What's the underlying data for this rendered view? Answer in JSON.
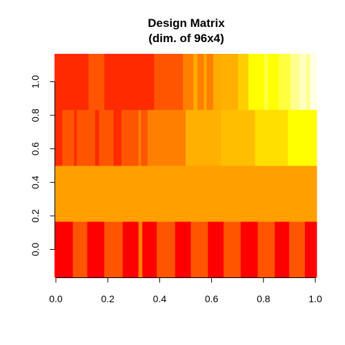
{
  "chart_data": {
    "type": "heatmap",
    "title": "Design Matrix",
    "subtitle": "(dim. of 96x4)",
    "xlabel": "",
    "ylabel": "",
    "x_ticks": [
      "0.0",
      "0.2",
      "0.4",
      "0.6",
      "0.8",
      "1.0"
    ],
    "y_ticks": [
      "0.0",
      "0.2",
      "0.4",
      "0.6",
      "0.8",
      "1.0"
    ],
    "x_tick_values": [
      0,
      0.2,
      0.4,
      0.6,
      0.8,
      1.0
    ],
    "y_tick_values": [
      0,
      0.2,
      0.4,
      0.6,
      0.8,
      1.0
    ],
    "xlim": [
      -0.0053,
      1.0053
    ],
    "ylim": [
      -0.1667,
      1.1667
    ],
    "rows": 4,
    "columns": 96,
    "color_scale": "heat.colors (low = red, high = white/yellow)",
    "palette": [
      "#ff0000",
      "#ff2a00",
      "#ff5500",
      "#ff8000",
      "#ffaa00",
      "#ffd500",
      "#ffff00",
      "#ffff80",
      "#ffffe6"
    ],
    "row_segments": [
      {
        "row": 0,
        "segments": [
          {
            "x0": 0.0,
            "x1": 0.07,
            "color": "#ff0000"
          },
          {
            "x0": 0.07,
            "x1": 0.125,
            "color": "#ff5500"
          },
          {
            "x0": 0.125,
            "x1": 0.19,
            "color": "#ff0000"
          },
          {
            "x0": 0.19,
            "x1": 0.26,
            "color": "#ff5500"
          },
          {
            "x0": 0.26,
            "x1": 0.32,
            "color": "#ff0000"
          },
          {
            "x0": 0.32,
            "x1": 0.335,
            "color": "#ff8000"
          },
          {
            "x0": 0.335,
            "x1": 0.39,
            "color": "#ff0000"
          },
          {
            "x0": 0.39,
            "x1": 0.46,
            "color": "#ff5500"
          },
          {
            "x0": 0.46,
            "x1": 0.52,
            "color": "#ff0000"
          },
          {
            "x0": 0.52,
            "x1": 0.585,
            "color": "#ff5500"
          },
          {
            "x0": 0.585,
            "x1": 0.645,
            "color": "#ff0000"
          },
          {
            "x0": 0.645,
            "x1": 0.71,
            "color": "#ff5500"
          },
          {
            "x0": 0.71,
            "x1": 0.775,
            "color": "#ff0000"
          },
          {
            "x0": 0.775,
            "x1": 0.84,
            "color": "#ff5500"
          },
          {
            "x0": 0.84,
            "x1": 0.895,
            "color": "#ff0000"
          },
          {
            "x0": 0.895,
            "x1": 0.955,
            "color": "#ff5500"
          },
          {
            "x0": 0.955,
            "x1": 1.0,
            "color": "#ff0000"
          }
        ]
      },
      {
        "row": 1,
        "segments": [
          {
            "x0": 0.0,
            "x1": 1.0,
            "color": "#ff9f00"
          }
        ]
      },
      {
        "row": 2,
        "segments": [
          {
            "x0": 0.0,
            "x1": 0.03,
            "color": "#ff2a00"
          },
          {
            "x0": 0.03,
            "x1": 0.075,
            "color": "#ff5500"
          },
          {
            "x0": 0.075,
            "x1": 0.085,
            "color": "#ff2a00"
          },
          {
            "x0": 0.085,
            "x1": 0.155,
            "color": "#ff5500"
          },
          {
            "x0": 0.155,
            "x1": 0.17,
            "color": "#ff2a00"
          },
          {
            "x0": 0.17,
            "x1": 0.225,
            "color": "#ff5500"
          },
          {
            "x0": 0.225,
            "x1": 0.255,
            "color": "#ff2a00"
          },
          {
            "x0": 0.255,
            "x1": 0.32,
            "color": "#ff5500"
          },
          {
            "x0": 0.32,
            "x1": 0.33,
            "color": "#ff8000"
          },
          {
            "x0": 0.33,
            "x1": 0.355,
            "color": "#ff5500"
          },
          {
            "x0": 0.355,
            "x1": 0.5,
            "color": "#ff8000"
          },
          {
            "x0": 0.5,
            "x1": 0.635,
            "color": "#ffb000"
          },
          {
            "x0": 0.635,
            "x1": 0.765,
            "color": "#ffbf00"
          },
          {
            "x0": 0.765,
            "x1": 0.89,
            "color": "#ffdf00"
          },
          {
            "x0": 0.89,
            "x1": 1.0,
            "color": "#ffff00"
          }
        ]
      },
      {
        "row": 3,
        "segments": [
          {
            "x0": 0.0,
            "x1": 0.13,
            "color": "#ff2a00"
          },
          {
            "x0": 0.13,
            "x1": 0.19,
            "color": "#ff5500"
          },
          {
            "x0": 0.19,
            "x1": 0.235,
            "color": "#ff2a00"
          },
          {
            "x0": 0.235,
            "x1": 0.38,
            "color": "#ff2a00"
          },
          {
            "x0": 0.38,
            "x1": 0.49,
            "color": "#ff5500"
          },
          {
            "x0": 0.49,
            "x1": 0.53,
            "color": "#ff8000"
          },
          {
            "x0": 0.53,
            "x1": 0.545,
            "color": "#ffaa00"
          },
          {
            "x0": 0.545,
            "x1": 0.57,
            "color": "#ff8000"
          },
          {
            "x0": 0.57,
            "x1": 0.58,
            "color": "#ffaa00"
          },
          {
            "x0": 0.58,
            "x1": 0.605,
            "color": "#ff8000"
          },
          {
            "x0": 0.605,
            "x1": 0.635,
            "color": "#ffaa00"
          },
          {
            "x0": 0.635,
            "x1": 0.7,
            "color": "#ffb000"
          },
          {
            "x0": 0.7,
            "x1": 0.74,
            "color": "#ffcf00"
          },
          {
            "x0": 0.74,
            "x1": 0.8,
            "color": "#ffff00"
          },
          {
            "x0": 0.8,
            "x1": 0.815,
            "color": "#ffff40"
          },
          {
            "x0": 0.815,
            "x1": 0.855,
            "color": "#ffff00"
          },
          {
            "x0": 0.855,
            "x1": 0.9,
            "color": "#ffff40"
          },
          {
            "x0": 0.9,
            "x1": 0.935,
            "color": "#ffff90"
          },
          {
            "x0": 0.935,
            "x1": 0.96,
            "color": "#ffffc0"
          },
          {
            "x0": 0.96,
            "x1": 0.975,
            "color": "#ffff90"
          },
          {
            "x0": 0.975,
            "x1": 1.0,
            "color": "#ffffe6"
          }
        ]
      }
    ],
    "grid": false,
    "legend": "none"
  }
}
